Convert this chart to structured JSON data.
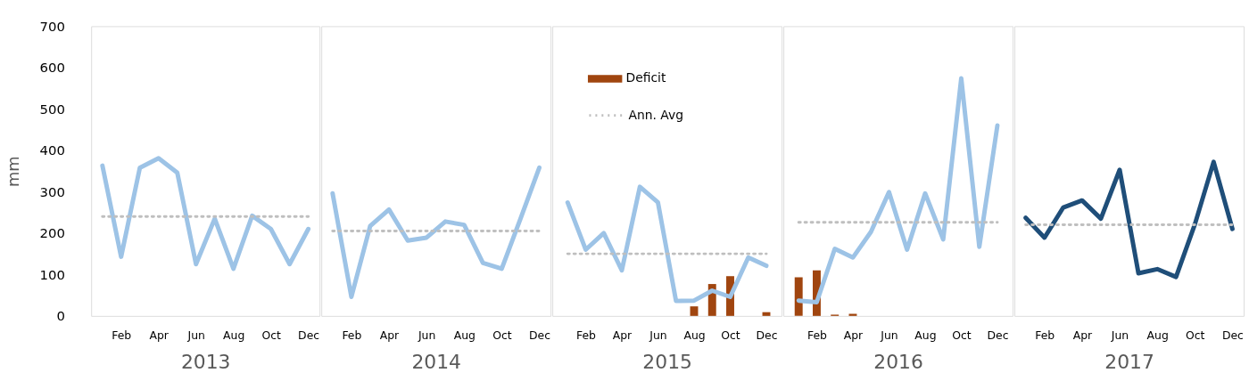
{
  "chart_data": [
    {
      "type": "line",
      "xlabel": "2013",
      "ylabel": "mm",
      "categories": [
        null,
        "Feb",
        null,
        "Apr",
        null,
        "Jun",
        null,
        "Aug",
        null,
        "Oct",
        null,
        "Dec"
      ],
      "ylim": [
        0,
        700
      ],
      "yticks": [
        0,
        100,
        200,
        300,
        400,
        500,
        600,
        700
      ],
      "grid": false,
      "legend": false,
      "series": [
        {
          "color": "#9dc3e6",
          "values": [
            363,
            143,
            358,
            381,
            346,
            125,
            235,
            114,
            242,
            210,
            125,
            210
          ]
        }
      ],
      "ref_lines": [
        {
          "axis": "y",
          "value": 240,
          "color": "#bfbfbf",
          "line_style": "dotted"
        }
      ]
    },
    {
      "type": "line",
      "xlabel": "2014",
      "categories": [
        null,
        "Feb",
        null,
        "Apr",
        null,
        "Jun",
        null,
        "Aug",
        null,
        "Oct",
        null,
        "Dec"
      ],
      "ylim": [
        0,
        700
      ],
      "yticks": [
        0,
        100,
        200,
        300,
        400,
        500,
        600,
        700
      ],
      "tick_labels": "x",
      "grid": false,
      "legend": false,
      "series": [
        {
          "color": "#9dc3e6",
          "values": [
            296,
            46,
            217,
            257,
            182,
            189,
            228,
            220,
            128,
            114,
            235,
            358
          ]
        }
      ],
      "ref_lines": [
        {
          "axis": "y",
          "value": 205,
          "color": "#bfbfbf",
          "line_style": "dotted"
        }
      ]
    },
    {
      "type": "line",
      "xlabel": "2015",
      "categories": [
        null,
        "Feb",
        null,
        "Apr",
        null,
        "Jun",
        null,
        "Aug",
        null,
        "Oct",
        null,
        "Dec"
      ],
      "ylim": [
        0,
        700
      ],
      "yticks": [
        0,
        100,
        200,
        300,
        400,
        500,
        600,
        700
      ],
      "tick_labels": "x",
      "grid": false,
      "legend": "top left",
      "series": [
        {
          "type": "bar",
          "name": "Deficit",
          "color": "#a0450f",
          "values": [
            null,
            null,
            null,
            null,
            null,
            null,
            null,
            23,
            77,
            96,
            null,
            9
          ]
        },
        {
          "color": "#9dc3e6",
          "values": [
            274,
            160,
            200,
            110,
            312,
            274,
            36,
            37,
            61,
            46,
            141,
            121
          ]
        }
      ],
      "ref_lines": [
        {
          "axis": "y",
          "value": 150,
          "label": "Ann. Avg",
          "color": "#bfbfbf",
          "line_style": "dotted"
        }
      ]
    },
    {
      "type": "line",
      "xlabel": "2016",
      "categories": [
        null,
        "Feb",
        null,
        "Apr",
        null,
        "Jun",
        null,
        "Aug",
        null,
        "Oct",
        null,
        "Dec"
      ],
      "ylim": [
        0,
        700
      ],
      "yticks": [
        0,
        100,
        200,
        300,
        400,
        500,
        600,
        700
      ],
      "tick_labels": "x",
      "grid": false,
      "legend": false,
      "series": [
        {
          "type": "bar",
          "color": "#a0450f",
          "values": [
            93,
            110,
            3,
            5,
            null,
            null,
            null,
            null,
            null,
            null,
            null,
            null
          ]
        },
        {
          "color": "#9dc3e6",
          "values": [
            37,
            33,
            162,
            141,
            203,
            299,
            160,
            296,
            185,
            574,
            167,
            460
          ]
        }
      ],
      "ref_lines": [
        {
          "axis": "y",
          "value": 226,
          "color": "#bfbfbf",
          "line_style": "dotted"
        }
      ]
    },
    {
      "type": "line",
      "xlabel": "2017",
      "categories": [
        null,
        "Feb",
        null,
        "Apr",
        null,
        "Jun",
        null,
        "Aug",
        null,
        "Oct",
        null,
        "Dec"
      ],
      "ylim": [
        0,
        700
      ],
      "yticks": [
        0,
        100,
        200,
        300,
        400,
        500,
        600,
        700
      ],
      "tick_labels": "x",
      "grid": false,
      "legend": false,
      "series": [
        {
          "color": "#1f4e79",
          "values": [
            237,
            189,
            262,
            279,
            235,
            353,
            103,
            113,
            94,
            221,
            372,
            210
          ]
        }
      ],
      "ref_lines": [
        {
          "axis": "y",
          "value": 220,
          "color": "#bfbfbf",
          "line_style": "dotted"
        }
      ]
    }
  ]
}
